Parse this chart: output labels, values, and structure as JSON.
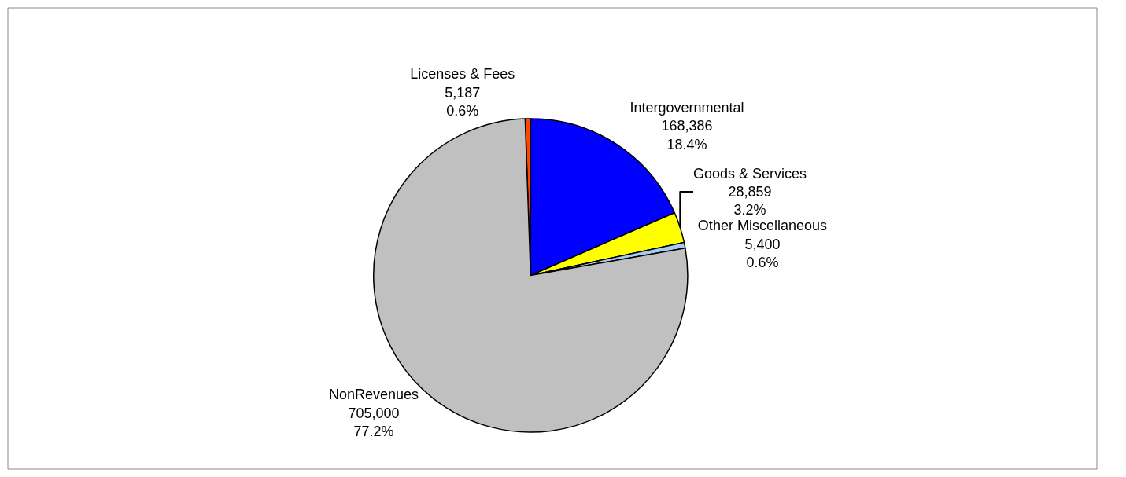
{
  "chart_data": {
    "type": "pie",
    "categories": [
      "Licenses & Fees",
      "Intergovernmental",
      "Goods & Services",
      "Other Miscellaneous",
      "NonRevenues"
    ],
    "values": [
      5187,
      168386,
      28859,
      5400,
      705000
    ],
    "value_labels": [
      "5,187\n0.6%",
      "168,386\n18.4%",
      "28,859\n3.2%",
      "5,400\n0.6%",
      "705,000\n77.2%"
    ],
    "colors": [
      "#ff4500",
      "#0000ff",
      "#ffff00",
      "#a6caf0",
      "#c0c0c0"
    ],
    "legend": false
  }
}
